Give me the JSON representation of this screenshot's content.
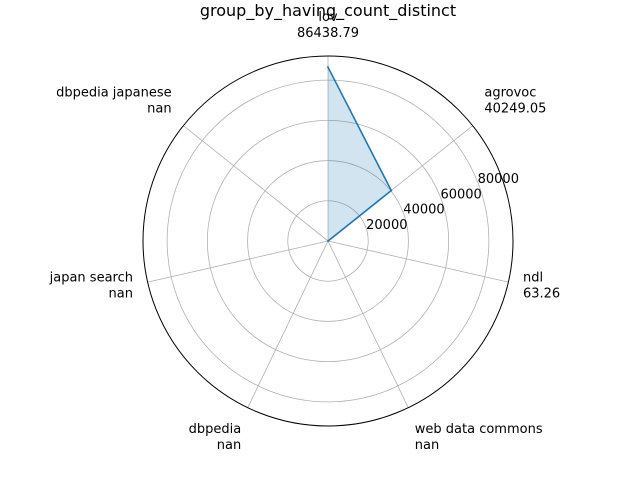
{
  "chart_data": {
    "type": "radar",
    "title": "group_by_having_count_distinct",
    "categories": [
      "lov",
      "agrovoc",
      "ndl",
      "web data commons",
      "dbpedia",
      "japan search",
      "dbpedia japanese"
    ],
    "series": [
      {
        "values": [
          86438.79,
          40249.05,
          63.26,
          null,
          null,
          null,
          null
        ],
        "value_labels": [
          "86438.79",
          "40249.05",
          "63.26",
          "nan",
          "nan",
          "nan",
          "nan"
        ],
        "line_color": "#1f77b4",
        "fill_color": "#1f77b4"
      }
    ],
    "rlim": [
      0,
      92000
    ],
    "rticks": [
      20000,
      40000,
      60000,
      80000
    ],
    "rtick_labels": [
      "20000",
      "40000",
      "60000",
      "80000"
    ],
    "grid": true,
    "legend": null
  }
}
